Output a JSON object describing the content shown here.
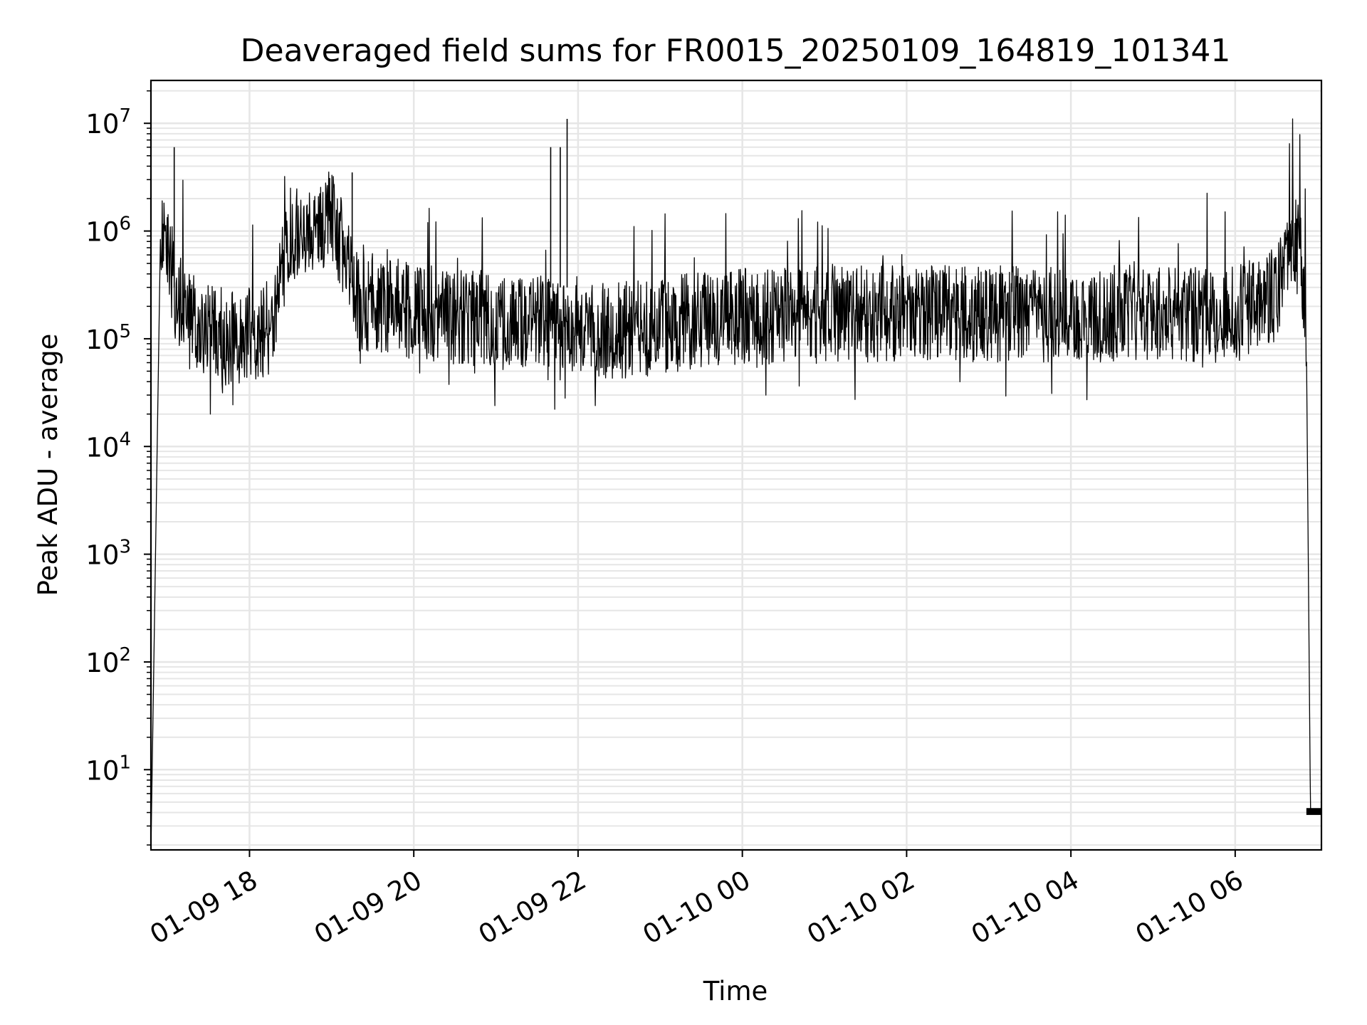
{
  "chart_data": {
    "type": "line",
    "title": "Deaveraged field sums for FR0015_20250109_164819_101341",
    "xlabel": "Time",
    "ylabel": "Peak ADU - average",
    "y_scale": "log",
    "ylim": [
      1.8,
      25000000
    ],
    "xlim": [
      "2025-01-09 16:48",
      "2025-01-10 07:03"
    ],
    "grid": true,
    "line_color": "#000000",
    "grid_color": "#e6e6e6",
    "x_ticks": [
      "01-09 18",
      "01-09 20",
      "01-09 22",
      "01-10 00",
      "01-10 02",
      "01-10 04",
      "01-10 06"
    ],
    "y_ticks": [
      {
        "base": "10",
        "exp": "1"
      },
      {
        "base": "10",
        "exp": "2"
      },
      {
        "base": "10",
        "exp": "3"
      },
      {
        "base": "10",
        "exp": "4"
      },
      {
        "base": "10",
        "exp": "5"
      },
      {
        "base": "10",
        "exp": "6"
      },
      {
        "base": "10",
        "exp": "7"
      }
    ],
    "series": [
      {
        "x": [
          "2025-01-09 16:48",
          "2025-01-09 16:55",
          "2025-01-09 17:00",
          "2025-01-09 17:05",
          "2025-01-09 17:15",
          "2025-01-09 17:30",
          "2025-01-09 17:45",
          "2025-01-09 18:00",
          "2025-01-09 18:15",
          "2025-01-09 18:30",
          "2025-01-09 18:45",
          "2025-01-09 19:00",
          "2025-01-09 19:10",
          "2025-01-09 19:20",
          "2025-01-09 19:30",
          "2025-01-09 19:45",
          "2025-01-09 20:00",
          "2025-01-09 20:30",
          "2025-01-09 21:00",
          "2025-01-09 21:30",
          "2025-01-09 21:45",
          "2025-01-09 21:50",
          "2025-01-09 22:00",
          "2025-01-09 22:30",
          "2025-01-09 23:00",
          "2025-01-09 23:30",
          "2025-01-10 00:00",
          "2025-01-10 01:00",
          "2025-01-10 02:00",
          "2025-01-10 03:00",
          "2025-01-10 04:00",
          "2025-01-10 05:00",
          "2025-01-10 06:00",
          "2025-01-10 06:30",
          "2025-01-10 06:40",
          "2025-01-10 06:48",
          "2025-01-10 06:52",
          "2025-01-10 06:55",
          "2025-01-10 07:03"
        ],
        "values": [
          1.8,
          1000000,
          800000,
          300000,
          150000,
          120000,
          100000,
          110000,
          130000,
          900000,
          1000000,
          1300000,
          600000,
          200000,
          200000,
          200000,
          180000,
          160000,
          150000,
          140000,
          130000,
          130000,
          120000,
          120000,
          130000,
          150000,
          160000,
          170000,
          170000,
          170000,
          170000,
          170000,
          170000,
          250000,
          1000000,
          600000,
          100000,
          4,
          4
        ]
      }
    ],
    "spikes": [
      {
        "x": "2025-01-09 17:05",
        "y": 6000000
      },
      {
        "x": "2025-01-09 19:15",
        "y": 3500000
      },
      {
        "x": "2025-01-09 21:40",
        "y": 6000000
      },
      {
        "x": "2025-01-09 21:47",
        "y": 6000000
      },
      {
        "x": "2025-01-09 21:52",
        "y": 11000000
      }
    ]
  }
}
